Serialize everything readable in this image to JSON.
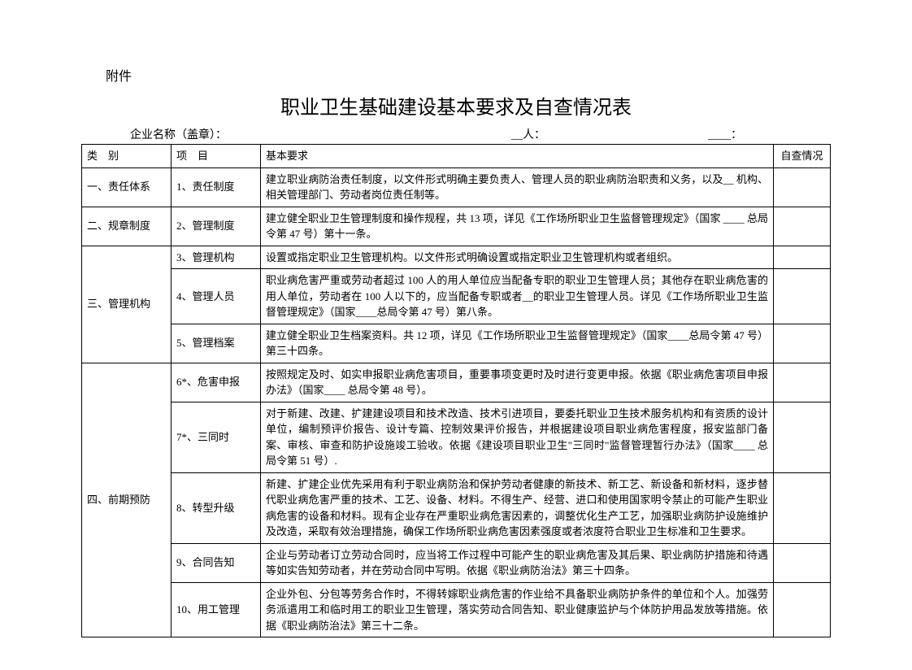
{
  "attachment_label": "附件",
  "title": "职业卫生基础建设基本要求及自查情况表",
  "header": {
    "company": "企业名称（盖章）：",
    "person": "__人：",
    "blank": "____："
  },
  "columns": {
    "category": "类　别",
    "item": "项　目",
    "requirement": "基本要求",
    "self_check": "自查情况"
  },
  "rows": [
    {
      "category": "一、责任体系",
      "rowspan": 1,
      "item": "1、责任制度",
      "req": "建立职业病防治责任制度，以文件形式明确主要负责人、管理人员的职业病防治职责和义务，以及__ 机构、相关管理部门、劳动者岗位责任制等。"
    },
    {
      "category": "二、规章制度",
      "rowspan": 1,
      "item": "2、管理制度",
      "req": "建立健全职业卫生管理制度和操作规程，共 13 项，详见《工作场所职业卫生监督管理规定》（国家 ____ 总局令第 47 号）第十一条。"
    },
    {
      "category": "三、管理机构",
      "rowspan": 3,
      "item": "3、管理机构",
      "req": "设置或指定职业卫生管理机构。以文件形式明确设置或指定职业卫生管理机构或者组织。"
    },
    {
      "item": "4、管理人员",
      "req": "职业病危害严重或劳动者超过 100 人的用人单位应当配备专职的职业卫生管理人员；其他存在职业病危害的用人单位，劳动者在 100 人以下的，应当配备专职或者__的职业卫生管理人员。详见《工作场所职业卫生监督管理规定》（国家____总局令第 47 号）第八条。"
    },
    {
      "item": "5、管理档案",
      "req": "建立健全职业卫生档案资料。共 12 项，详见《工作场所职业卫生监督管理规定》（国家____总局令第 47 号）第三十四条。"
    },
    {
      "category": "四、前期预防",
      "rowspan": 5,
      "item": "6*、危害申报",
      "req": "按照规定及时、如实申报职业病危害项目，重要事项变更时及时进行变更申报。依据《职业病危害项目申报办法》（国家____ 总局令第 48 号）。"
    },
    {
      "item": "7*、三同时",
      "req": "对于新建、改建、扩建建设项目和技术改造、技术引进项目，要委托职业卫生技术服务机构和有资质的设计单位，编制预评价报告、设计专篇、控制效果评价报告，并根据建设项目职业病危害程度，报安监部门备案、审核、审查和防护设施竣工验收。依据《建设项目职业卫生\"三同时\"监督管理暂行办法》（国家____ 总局令第 51 号）."
    },
    {
      "item": "8、转型升级",
      "req": "新建、扩建企业优先采用有利于职业病防治和保护劳动者健康的新技术、新工艺、新设备和新材料，逐步替代职业病危害严重的技术、工艺、设备、材料。不得生产、经营、进口和使用国家明令禁止的可能产生职业病危害的设备和材料。现有企业存在严重职业病危害因素的，调整优化生产工艺，加强职业病防护设施维护及改造，采取有效治理措施，确保工作场所职业病危害因素强度或者浓度符合职业卫生标准和卫生要求。"
    },
    {
      "item": "9、合同告知",
      "req": "企业与劳动者订立劳动合同时，应当将工作过程中可能产生的职业病危害及其后果、职业病防护措施和待遇等如实告知劳动者，并在劳动合同中写明。依据《职业病防治法》第三十四条。"
    },
    {
      "item": "10、用工管理",
      "req": "企业外包、分包等劳务合作时，不得转嫁职业病危害的作业给不具备职业病防护条件的单位和个人。加强劳务派遣用工和临时用工的职业卫生管理，落实劳动合同告知、职业健康监护与个体防护用品发放等措施。依据《职业病防治法》第三十二条。"
    }
  ]
}
